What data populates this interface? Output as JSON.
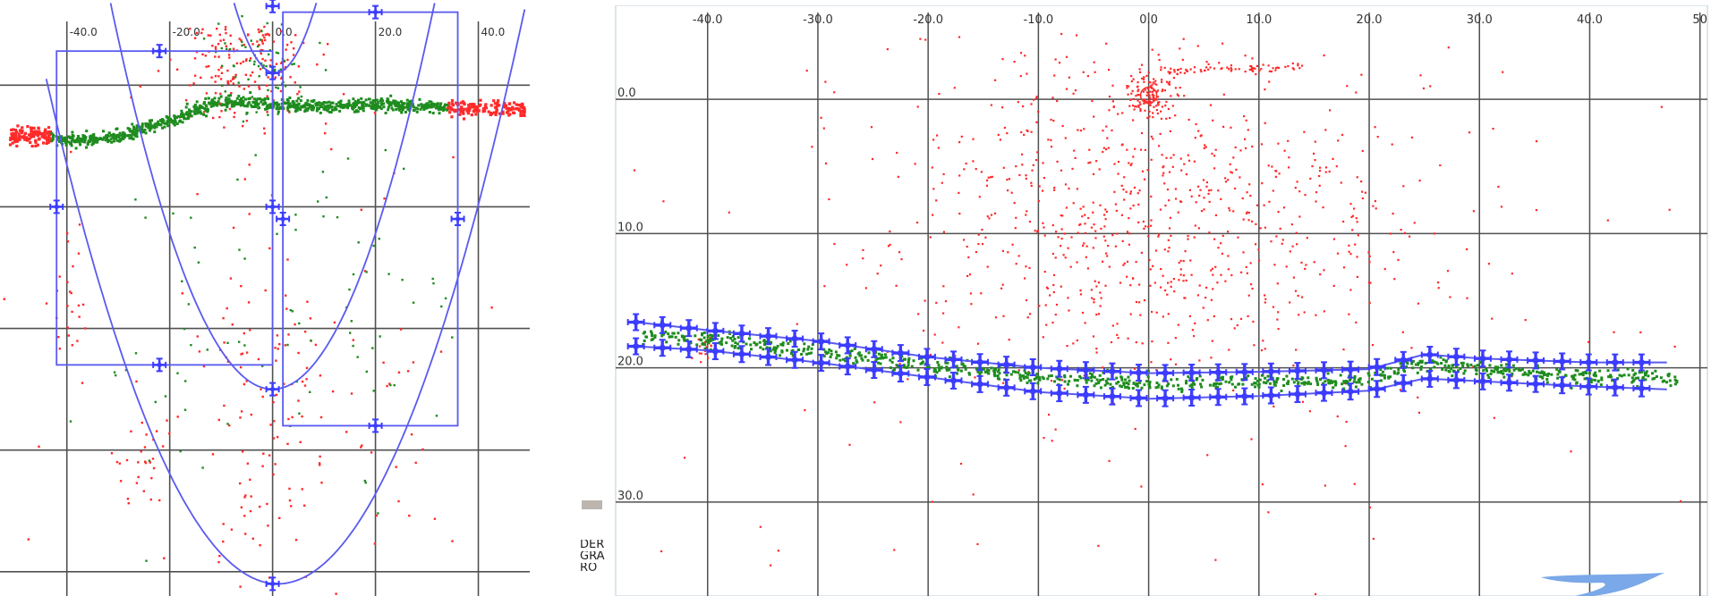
{
  "colors": {
    "grid": "#505050",
    "noise": "#ff2a2a",
    "track": "#1e8c1e",
    "fit": "#5a5af0",
    "marker": "#3c3cff",
    "axis_text": "#333333",
    "swoosh": "#7aa8e8"
  },
  "side_text": [
    "DER",
    "GRÁ",
    "RO"
  ],
  "chart_data": [
    {
      "type": "scatter",
      "title": "",
      "x_ticks": [
        "-40.0",
        "-20.0",
        "0.0",
        "20.0",
        "40.0"
      ],
      "y_ticks": [],
      "xlim": [
        -53,
        50
      ],
      "ylim": [
        -1,
        48
      ],
      "grid": true,
      "series": [
        {
          "kind": "red-noise-clusters",
          "clusters": [
            {
              "cx": -6,
              "cy": 3,
              "sx": 7,
              "sy": 3.5,
              "n": 260
            },
            {
              "cx": -1,
              "cy": 33,
              "sx": 6,
              "sy": 8,
              "n": 110
            },
            {
              "cx": -40,
              "cy": 25,
              "sx": 3,
              "sy": 3,
              "n": 25
            },
            {
              "cx": -25,
              "cy": 37,
              "sx": 3,
              "sy": 3,
              "n": 30
            },
            {
              "cx": 20,
              "cy": 37,
              "sx": 10,
              "sy": 5,
              "n": 25
            },
            {
              "cx": 0,
              "cy": 25,
              "sx": 40,
              "sy": 22,
              "n": 70
            }
          ]
        },
        {
          "kind": "red-band",
          "segments": [
            {
              "x0": -51,
              "x1": -43,
              "y": 10.2,
              "spread": 0.35,
              "n": 120
            },
            {
              "x0": 34,
              "x1": 49,
              "y": 8.0,
              "spread": 0.3,
              "n": 150
            }
          ]
        },
        {
          "kind": "green-track",
          "path": [
            {
              "x": -43,
              "y": 10.4
            },
            {
              "x": -35,
              "y": 10.5
            },
            {
              "x": -30,
              "y": 10.2
            },
            {
              "x": -20,
              "y": 8.9
            },
            {
              "x": -12,
              "y": 7.6
            },
            {
              "x": -6,
              "y": 7.3
            },
            {
              "x": 0,
              "y": 7.6
            },
            {
              "x": 10,
              "y": 7.8
            },
            {
              "x": 20,
              "y": 7.6
            },
            {
              "x": 34,
              "y": 7.8
            }
          ],
          "spread": 0.25,
          "n": 900
        },
        {
          "kind": "green-clusters",
          "clusters": [
            {
              "cx": -2,
              "cy": 4.5,
              "sx": 4,
              "sy": 2,
              "n": 70
            },
            {
              "cx": 15,
              "cy": 25,
              "sx": 10,
              "sy": 8,
              "n": 55
            },
            {
              "cx": -20,
              "cy": 27,
              "sx": 8,
              "sy": 8,
              "n": 30
            }
          ]
        }
      ],
      "rectangles": [
        {
          "x0": -42,
          "y0": 3.2,
          "x1": 0,
          "y1": 29
        },
        {
          "x0": 2,
          "y0": 0,
          "x1": 36,
          "y1": 34
        }
      ],
      "rect_handles": [
        {
          "x": -22,
          "y": 3.2
        },
        {
          "x": -42,
          "y": 16
        },
        {
          "x": 0,
          "y": 16
        },
        {
          "x": -22,
          "y": 29
        },
        {
          "x": 20,
          "y": 0
        },
        {
          "x": 2,
          "y": 17
        },
        {
          "x": 36,
          "y": 17
        },
        {
          "x": 20,
          "y": 34
        }
      ],
      "parabolas": [
        {
          "vx": 1,
          "vy": 47,
          "a": 0.0205,
          "xmin": -44,
          "xmax": 49.5
        },
        {
          "vx": 0,
          "vy": 31,
          "a": 0.032,
          "xmin": -36,
          "xmax": 36
        },
        {
          "vx": 0.5,
          "vy": 5,
          "a": 0.09,
          "xmin": -13,
          "xmax": 14
        }
      ],
      "parabola_handles": [
        {
          "x": 0,
          "y": 47
        },
        {
          "x": 0,
          "y": 31
        },
        {
          "x": 0,
          "y": 5
        },
        {
          "x": 0,
          "y": -0.5
        }
      ]
    },
    {
      "type": "scatter",
      "title": "",
      "x_ticks": [
        "-40.0",
        "-30.0",
        "-20.0",
        "-10.0",
        "0.0",
        "10.0",
        "20.0",
        "30.0",
        "40.0",
        "50"
      ],
      "y_ticks": [
        "0.0",
        "10.0",
        "20.0",
        "30.0"
      ],
      "xlim": [
        -48.5,
        51
      ],
      "ylim": [
        -7,
        37
      ],
      "grid": true,
      "series": [
        {
          "kind": "red-noise-clusters",
          "clusters": [
            {
              "cx": 0,
              "cy": 6,
              "sx": 11,
              "sy": 6,
              "n": 520
            },
            {
              "cx": 0,
              "cy": 13,
              "sx": 13,
              "sy": 5,
              "n": 320
            },
            {
              "cx": 0,
              "cy": -0.3,
              "sx": 1.2,
              "sy": 0.8,
              "n": 110
            },
            {
              "cx": 0,
              "cy": 15,
              "sx": 38,
              "sy": 18,
              "n": 170
            },
            {
              "cx": -40,
              "cy": 18.5,
              "sx": 0.9,
              "sy": 0.6,
              "n": 20
            }
          ]
        },
        {
          "kind": "red-streak",
          "x0": 1,
          "x1": 14,
          "y0": -2.1,
          "y1": -2.4,
          "spread": 0.15,
          "n": 70
        },
        {
          "kind": "green-track",
          "path": [
            {
              "x": -46,
              "y": 17.6
            },
            {
              "x": -38,
              "y": 18.0
            },
            {
              "x": -30,
              "y": 18.8
            },
            {
              "x": -20,
              "y": 19.8
            },
            {
              "x": -10,
              "y": 20.8
            },
            {
              "x": 0,
              "y": 21.2
            },
            {
              "x": 10,
              "y": 21.0
            },
            {
              "x": 20,
              "y": 20.9
            },
            {
              "x": 24,
              "y": 19.8
            },
            {
              "x": 30,
              "y": 20.1
            },
            {
              "x": 40,
              "y": 20.6
            },
            {
              "x": 48,
              "y": 20.9
            }
          ],
          "spread": 0.3,
          "n": 850
        }
      ],
      "boundary_upper": [
        {
          "x": -46.5,
          "y": 16.6
        },
        {
          "x": -40,
          "y": 17.2
        },
        {
          "x": -30,
          "y": 18.0
        },
        {
          "x": -20,
          "y": 19.2
        },
        {
          "x": -10,
          "y": 20.0
        },
        {
          "x": 0,
          "y": 20.4
        },
        {
          "x": 10,
          "y": 20.3
        },
        {
          "x": 20,
          "y": 20.1
        },
        {
          "x": 25,
          "y": 19.0
        },
        {
          "x": 30,
          "y": 19.3
        },
        {
          "x": 40,
          "y": 19.6
        },
        {
          "x": 47,
          "y": 19.6
        }
      ],
      "boundary_lower": [
        {
          "x": -46.5,
          "y": 18.4
        },
        {
          "x": -40,
          "y": 18.7
        },
        {
          "x": -30,
          "y": 19.6
        },
        {
          "x": -20,
          "y": 20.7
        },
        {
          "x": -10,
          "y": 21.8
        },
        {
          "x": 0,
          "y": 22.3
        },
        {
          "x": 10,
          "y": 22.1
        },
        {
          "x": 20,
          "y": 21.7
        },
        {
          "x": 25,
          "y": 20.8
        },
        {
          "x": 30,
          "y": 21.0
        },
        {
          "x": 40,
          "y": 21.4
        },
        {
          "x": 47,
          "y": 21.6
        }
      ],
      "marker_spacing": 2.4
    }
  ]
}
